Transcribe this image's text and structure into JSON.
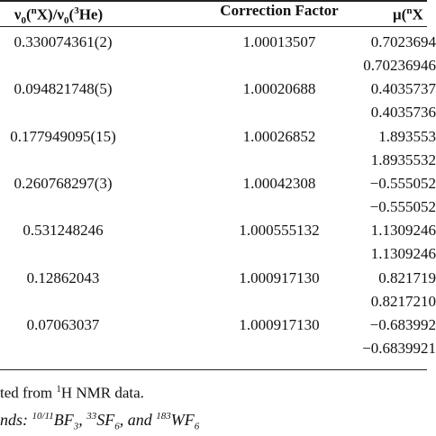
{
  "header": {
    "col1": {
      "nu1": "ν",
      "sub1": "0",
      "open1": "(",
      "sup1": "n",
      "mid": "X)/ν",
      "sub2": "0",
      "open2": "(",
      "sup2": "3",
      "end": "He)"
    },
    "col2": "Correction Factor",
    "col3": {
      "mu": "μ(",
      "sup": "n",
      "x": "X"
    }
  },
  "table": {
    "rows": [
      {
        "ratio": "0.330074361(2)",
        "correction": "1.00013507",
        "mu": [
          "0.7023694",
          "0.70236946"
        ]
      },
      {
        "ratio": "0.094821748(5)",
        "correction": "1.00020688",
        "mu": [
          "0.4035737",
          "0.4035736"
        ]
      },
      {
        "ratio": "0.177949095(15)",
        "correction": "1.00026852",
        "mu": [
          "1.893553",
          "1.8935532"
        ]
      },
      {
        "ratio": "0.260768297(3)",
        "correction": "1.00042308",
        "mu": [
          "−0.555052",
          "−0.555052"
        ]
      },
      {
        "ratio": "0.531248246",
        "correction": "1.000555132",
        "mu": [
          "1.1309246",
          "1.1309246"
        ]
      },
      {
        "ratio": "0.12862043",
        "correction": "1.000917130",
        "mu": [
          "0.821719",
          "0.8217210"
        ]
      },
      {
        "ratio": "0.07063037",
        "correction": "1.000917130",
        "mu": [
          "−0.683992",
          "−0.6839921"
        ]
      }
    ]
  },
  "footnotes": {
    "line1": {
      "pre": "ted from ",
      "sup": "1",
      "post": "H NMR data."
    },
    "line2": {
      "pre": "nds: ",
      "s1": "10/11",
      "t1": "BF",
      "b1": "3",
      "c1": ", ",
      "s2": "33",
      "t2": "SF",
      "b2": "6",
      "c2": ", and ",
      "s3": "183",
      "t3": "WF",
      "b3": "6"
    }
  }
}
